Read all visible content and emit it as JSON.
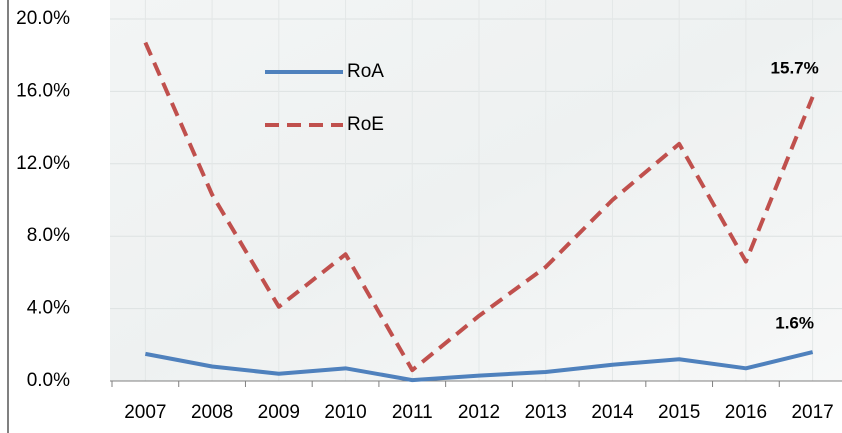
{
  "chart_data": {
    "type": "line",
    "categories": [
      "2007",
      "2008",
      "2009",
      "2010",
      "2011",
      "2012",
      "2013",
      "2014",
      "2015",
      "2016",
      "2017"
    ],
    "series": [
      {
        "name": "RoA",
        "color": "#4f81bd",
        "style": "solid",
        "values": [
          1.5,
          0.8,
          0.4,
          0.7,
          0.05,
          0.3,
          0.5,
          0.9,
          1.2,
          0.7,
          1.6
        ],
        "value_labels": [
          null,
          null,
          null,
          null,
          null,
          null,
          null,
          null,
          null,
          null,
          "1.6%"
        ]
      },
      {
        "name": "RoE",
        "color": "#c0504d",
        "style": "dashed",
        "values": [
          18.7,
          10.3,
          4.1,
          7.0,
          0.6,
          3.6,
          6.3,
          10.0,
          13.1,
          6.6,
          15.7
        ],
        "value_labels": [
          null,
          null,
          null,
          null,
          null,
          null,
          null,
          null,
          null,
          null,
          "15.7%"
        ]
      }
    ],
    "ylim": [
      0,
      20
    ],
    "yticks": [
      {
        "value": 0,
        "label": "0.0%"
      },
      {
        "value": 4,
        "label": "4.0%"
      },
      {
        "value": 8,
        "label": "8.0%"
      },
      {
        "value": 12,
        "label": "12.0%"
      },
      {
        "value": 16,
        "label": "16.0%"
      },
      {
        "value": 20,
        "label": "20.0%"
      }
    ],
    "grid": true,
    "legend": "upper-left"
  }
}
